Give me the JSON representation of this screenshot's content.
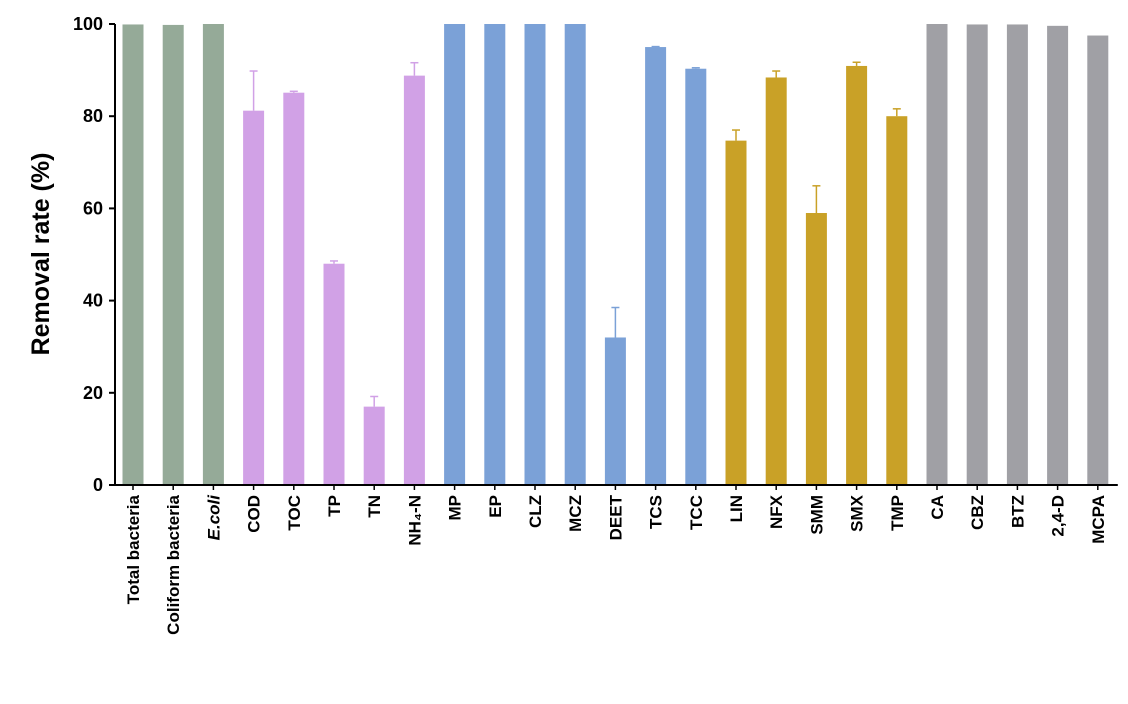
{
  "chart_data": {
    "type": "bar",
    "title": "",
    "xlabel": "",
    "ylabel": "Removal rate (%)",
    "ylim": [
      0,
      100
    ],
    "yticks": [
      0,
      20,
      40,
      60,
      80,
      100
    ],
    "grid": false,
    "legend": "none",
    "categories": [
      "Total bacteria",
      "Coliform bacteria",
      "E.coli",
      "COD",
      "TOC",
      "TP",
      "TN",
      "NH4-N",
      "MP",
      "EP",
      "CLZ",
      "MCZ",
      "DEET",
      "TCS",
      "TCC",
      "LIN",
      "NFX",
      "SMM",
      "SMX",
      "TMP",
      "CA",
      "CBZ",
      "BTZ",
      "2,4-D",
      "MCPA"
    ],
    "category_labels": [
      "Total bacteria",
      "Coliform bacteria",
      "E.coli",
      "COD",
      "TOC",
      "TP",
      "TN",
      "NH₄-N",
      "MP",
      "EP",
      "CLZ",
      "MCZ",
      "DEET",
      "TCS",
      "TCC",
      "LIN",
      "NFX",
      "SMM",
      "SMX",
      "TMP",
      "CA",
      "CBZ",
      "BTZ",
      "2,4-D",
      "MCPA"
    ],
    "italic_categories": [
      "E.coli"
    ],
    "values": [
      99.9,
      99.8,
      100,
      81.2,
      85.1,
      48.0,
      17.0,
      88.8,
      100,
      100,
      100,
      100,
      32.0,
      95.0,
      90.3,
      74.7,
      88.4,
      59.0,
      90.9,
      80.0,
      100,
      99.9,
      99.9,
      99.6,
      97.5
    ],
    "errors": [
      0,
      0,
      0,
      8.6,
      0.3,
      0.6,
      2.2,
      2.8,
      0,
      0,
      0,
      0,
      6.5,
      0.1,
      0.2,
      2.3,
      1.4,
      5.9,
      0.8,
      1.6,
      0,
      0,
      0,
      0,
      0
    ],
    "groups": [
      0,
      0,
      0,
      1,
      1,
      1,
      1,
      1,
      2,
      2,
      2,
      2,
      2,
      2,
      2,
      3,
      3,
      3,
      3,
      3,
      4,
      4,
      4,
      4,
      4
    ],
    "group_colors": [
      "#95aa98",
      "#d1a1e6",
      "#7ba1d7",
      "#c9a127",
      "#a0a0a5"
    ]
  }
}
